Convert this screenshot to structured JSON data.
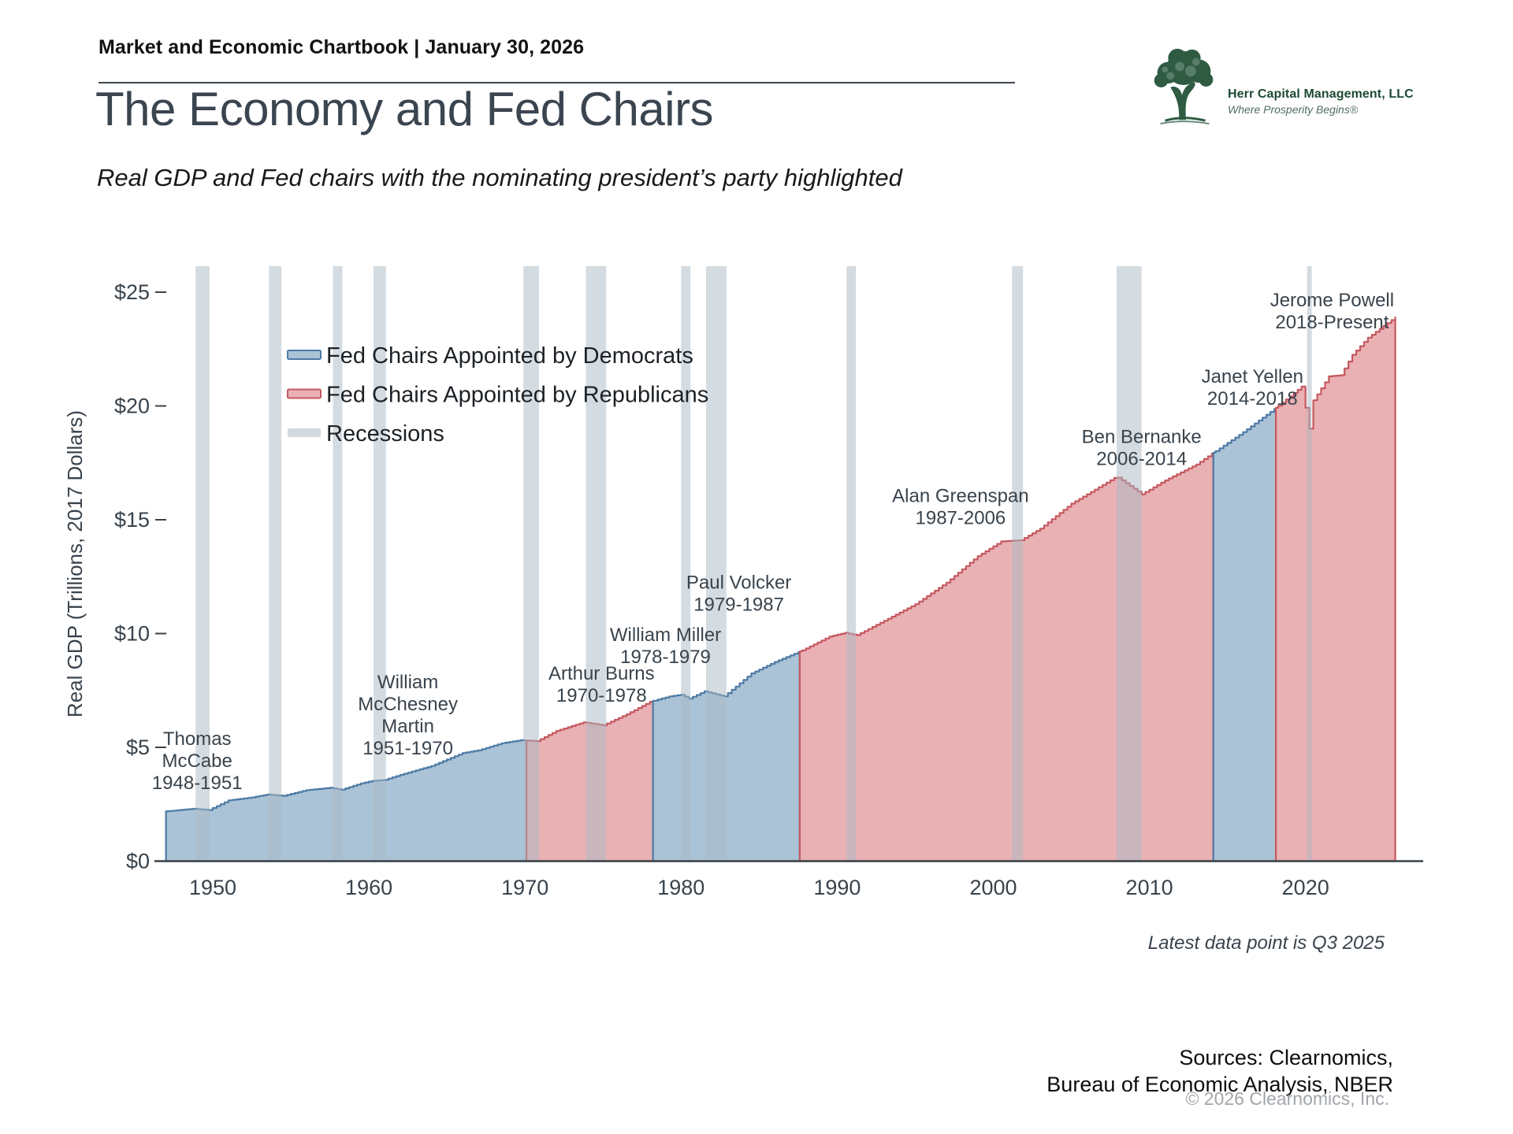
{
  "header": {
    "chartbook_label": "Market and Economic Chartbook | January 30, 2026"
  },
  "logo": {
    "company": "Herr Capital Management, LLC",
    "tagline": "Where Prosperity Begins®",
    "icon": "tree-icon",
    "green": "#2e5b42"
  },
  "title": "The Economy and Fed Chairs",
  "subtitle": "Real GDP and Fed chairs with the nominating president’s party highlighted",
  "footnotes": {
    "latest": "Latest data point is Q3 2025",
    "sources_line1": "Sources: Clearnomics,",
    "sources_line2": "Bureau of Economic Analysis, NBER",
    "copyright": "© 2026 Clearnomics, Inc."
  },
  "chart_data": {
    "type": "area",
    "title": "The Economy and Fed Chairs",
    "subtitle": "Real GDP and Fed chairs with the nominating president’s party highlighted",
    "xlabel": "",
    "ylabel": "Real GDP (Trillions, 2017 Dollars)",
    "units": "trillions of 2017 dollars",
    "xlim": [
      1947,
      2026.8
    ],
    "ylim": [
      0,
      25
    ],
    "x_ticks": [
      1950,
      1960,
      1970,
      1980,
      1990,
      2000,
      2010,
      2020
    ],
    "y_ticks": [
      {
        "value": 0,
        "label": "$0"
      },
      {
        "value": 5,
        "label": "$5"
      },
      {
        "value": 10,
        "label": "$10"
      },
      {
        "value": 15,
        "label": "$15"
      },
      {
        "value": 20,
        "label": "$20"
      },
      {
        "value": 25,
        "label": "$25"
      }
    ],
    "legend": [
      {
        "label": "Fed Chairs Appointed by Democrats",
        "fill": "#abc3d6",
        "stroke": "#4d7aa5"
      },
      {
        "label": "Fed Chairs Appointed by Republicans",
        "fill": "#e9b1b4",
        "stroke": "#c5585f"
      },
      {
        "label": "Recessions",
        "fill": "#d3dade",
        "stroke": null
      }
    ],
    "colors": {
      "democrat_fill": "#abc3d6",
      "democrat_line": "#4d7aa5",
      "republican_fill": "#e9b1b4",
      "republican_line": "#c5585f",
      "recession": "#a9bac4",
      "axis": "#3a424a",
      "text": "#39434c"
    },
    "gdp_anchors": [
      [
        1947.0,
        2.19
      ],
      [
        1948.75,
        2.3
      ],
      [
        1949.75,
        2.25
      ],
      [
        1951.0,
        2.67
      ],
      [
        1952.5,
        2.8
      ],
      [
        1953.5,
        2.93
      ],
      [
        1954.5,
        2.87
      ],
      [
        1956.0,
        3.12
      ],
      [
        1957.5,
        3.22
      ],
      [
        1958.25,
        3.14
      ],
      [
        1959.5,
        3.42
      ],
      [
        1960.25,
        3.53
      ],
      [
        1961.0,
        3.57
      ],
      [
        1962.0,
        3.79
      ],
      [
        1964.0,
        4.18
      ],
      [
        1966.0,
        4.75
      ],
      [
        1967.0,
        4.87
      ],
      [
        1968.5,
        5.18
      ],
      [
        1969.75,
        5.32
      ],
      [
        1970.75,
        5.27
      ],
      [
        1972.0,
        5.72
      ],
      [
        1973.75,
        6.1
      ],
      [
        1975.0,
        5.97
      ],
      [
        1976.5,
        6.45
      ],
      [
        1978.0,
        7.0
      ],
      [
        1979.25,
        7.24
      ],
      [
        1980.0,
        7.31
      ],
      [
        1980.5,
        7.14
      ],
      [
        1981.5,
        7.46
      ],
      [
        1982.75,
        7.24
      ],
      [
        1984.5,
        8.25
      ],
      [
        1986.0,
        8.75
      ],
      [
        1987.6,
        9.21
      ],
      [
        1989.5,
        9.87
      ],
      [
        1990.5,
        10.03
      ],
      [
        1991.25,
        9.93
      ],
      [
        1993.0,
        10.56
      ],
      [
        1995.0,
        11.29
      ],
      [
        1997.0,
        12.24
      ],
      [
        1999.0,
        13.4
      ],
      [
        2000.5,
        14.05
      ],
      [
        2001.75,
        14.1
      ],
      [
        2003.0,
        14.61
      ],
      [
        2005.0,
        15.71
      ],
      [
        2007.9,
        16.9
      ],
      [
        2009.5,
        16.12
      ],
      [
        2011.0,
        16.73
      ],
      [
        2013.0,
        17.43
      ],
      [
        2014.1,
        17.95
      ],
      [
        2016.0,
        18.85
      ],
      [
        2018.1,
        19.92
      ],
      [
        2019.75,
        20.85
      ],
      [
        2020.25,
        19.0
      ],
      [
        2020.5,
        20.25
      ],
      [
        2021.5,
        21.3
      ],
      [
        2022.25,
        21.35
      ],
      [
        2023.0,
        22.25
      ],
      [
        2024.0,
        23.0
      ],
      [
        2025.75,
        23.9
      ]
    ],
    "chairs": [
      {
        "name": "Thomas McCabe",
        "term": "1948-1951",
        "party": "Democrat",
        "start": 1947.0,
        "end": 1951.3
      },
      {
        "name": "William McChesney Martin",
        "term": "1951-1970",
        "party": "Democrat",
        "start": 1951.3,
        "end": 1970.1
      },
      {
        "name": "Arthur Burns",
        "term": "1970-1978",
        "party": "Republican",
        "start": 1970.1,
        "end": 1978.2
      },
      {
        "name": "William Miller",
        "term": "1978-1979",
        "party": "Democrat",
        "start": 1978.2,
        "end": 1979.6
      },
      {
        "name": "Paul Volcker",
        "term": "1979-1987",
        "party": "Democrat",
        "start": 1979.6,
        "end": 1987.6
      },
      {
        "name": "Alan Greenspan",
        "term": "1987-2006",
        "party": "Republican",
        "start": 1987.6,
        "end": 2006.1
      },
      {
        "name": "Ben Bernanke",
        "term": "2006-2014",
        "party": "Republican",
        "start": 2006.1,
        "end": 2014.1
      },
      {
        "name": "Janet Yellen",
        "term": "2014-2018",
        "party": "Democrat",
        "start": 2014.1,
        "end": 2018.1
      },
      {
        "name": "Jerome Powell",
        "term": "2018-Present",
        "party": "Republican",
        "start": 2018.1,
        "end": 2025.75
      }
    ],
    "recessions": [
      [
        1948.9,
        1949.8
      ],
      [
        1953.6,
        1954.4
      ],
      [
        1957.7,
        1958.3
      ],
      [
        1960.3,
        1961.1
      ],
      [
        1969.9,
        1970.9
      ],
      [
        1973.9,
        1975.2
      ],
      [
        1980.0,
        1980.6
      ],
      [
        1981.6,
        1982.9
      ],
      [
        1990.6,
        1991.2
      ],
      [
        2001.2,
        2001.9
      ],
      [
        2007.9,
        2009.5
      ],
      [
        2020.1,
        2020.4
      ]
    ],
    "annotations": [
      {
        "lines": [
          "Thomas",
          "McCabe",
          "1948-1951"
        ],
        "year": 1949.0,
        "value": 4.45
      },
      {
        "lines": [
          "William",
          "McChesney",
          "Martin",
          "1951-1970"
        ],
        "year": 1962.5,
        "value": 6.45
      },
      {
        "lines": [
          "Arthur Burns",
          "1970-1978"
        ],
        "year": 1974.9,
        "value": 7.8
      },
      {
        "lines": [
          "William Miller",
          "1978-1979"
        ],
        "year": 1979.0,
        "value": 9.5
      },
      {
        "lines": [
          "Paul Volcker",
          "1979-1987"
        ],
        "year": 1983.7,
        "value": 11.8
      },
      {
        "lines": [
          "Alan Greenspan",
          "1987-2006"
        ],
        "year": 1997.9,
        "value": 15.6
      },
      {
        "lines": [
          "Ben Bernanke",
          "2006-2014"
        ],
        "year": 2009.5,
        "value": 18.2
      },
      {
        "lines": [
          "Janet Yellen",
          "2014-2018"
        ],
        "year": 2016.6,
        "value": 20.85
      },
      {
        "lines": [
          "Jerome Powell",
          "2018-Present"
        ],
        "year": 2021.7,
        "value": 24.2
      }
    ],
    "latest_data_point": "Q3 2025"
  }
}
